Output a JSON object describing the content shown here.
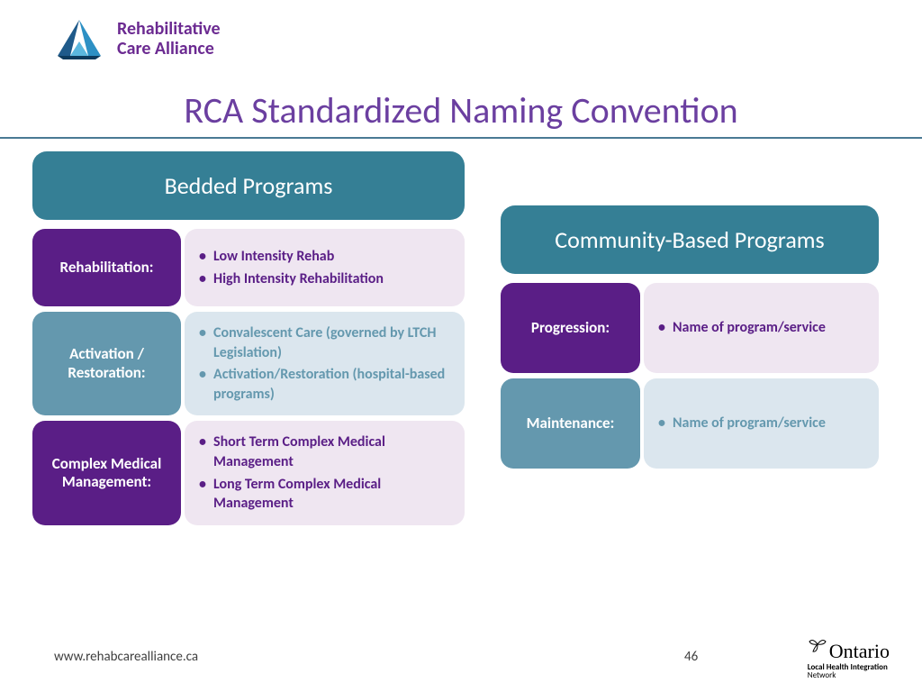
{
  "logo": {
    "line1": "Rehabilitative",
    "line2": "Care Alliance",
    "text_color": "#6b2a91",
    "triangle_colors": [
      "#1f5a8a",
      "#2d90c4",
      "#5bb7de"
    ]
  },
  "title": {
    "text": "RCA Standardized Naming Convention",
    "color": "#6b3fa0",
    "fontsize": 40,
    "rule_color": "#4a7a94"
  },
  "left_panel": {
    "header": {
      "text": "Bedded Programs",
      "bg": "#357f95",
      "color": "#ffffff",
      "fontsize": 26
    },
    "rows": [
      {
        "label": "Rehabilitation:",
        "label_bg": "#5a1e86",
        "content_bg": "#efe6f1",
        "content_color": "#5a1e86",
        "items": [
          "Low Intensity Rehab",
          "High Intensity Rehabilitation"
        ]
      },
      {
        "label": "Activation / Restoration:",
        "label_bg": "#6498ae",
        "content_bg": "#dbe6ee",
        "content_color": "#6498ae",
        "items": [
          "Convalescent Care (governed by LTCH Legislation)",
          "Activation/Restoration (hospital-based programs)"
        ]
      },
      {
        "label": "Complex Medical Management:",
        "label_bg": "#5a1e86",
        "content_bg": "#efe6f1",
        "content_color": "#5a1e86",
        "items": [
          "Short Term Complex Medical Management",
          "Long Term Complex Medical Management"
        ]
      }
    ]
  },
  "right_panel": {
    "header": {
      "text": "Community-Based Programs",
      "bg": "#357f95",
      "color": "#ffffff",
      "fontsize": 26
    },
    "rows": [
      {
        "label": "Progression:",
        "label_bg": "#5a1e86",
        "content_bg": "#efe6f1",
        "content_color": "#5a1e86",
        "items": [
          "Name of program/service"
        ]
      },
      {
        "label": "Maintenance:",
        "label_bg": "#6498ae",
        "content_bg": "#dbe6ee",
        "content_color": "#6498ae",
        "items": [
          "Name of program/service"
        ]
      }
    ]
  },
  "footer": {
    "url": "www.rehabcarealliance.ca",
    "page": "46",
    "ontario": {
      "name": "Ontario",
      "sub1": "Local Health Integration",
      "sub2": "Network"
    }
  }
}
